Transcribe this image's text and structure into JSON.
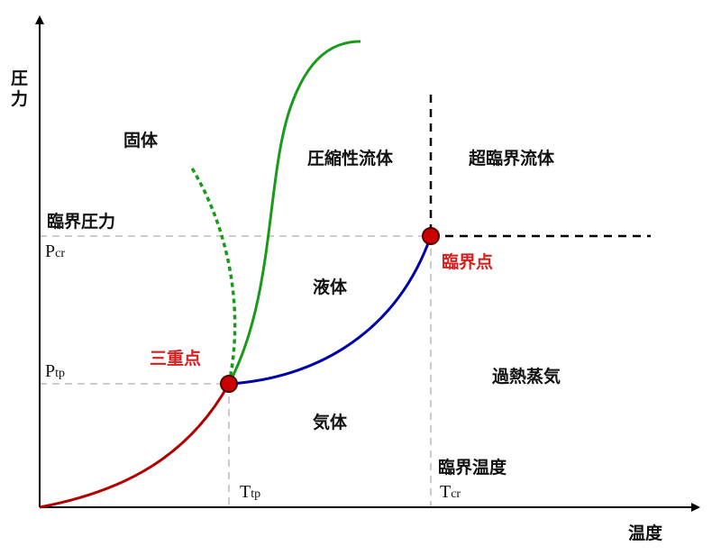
{
  "axes": {
    "y_label": [
      "圧",
      "力"
    ],
    "x_label": "温度"
  },
  "regions": {
    "solid": "固体",
    "compressible_fluid": "圧縮性流体",
    "supercritical_fluid": "超臨界流体",
    "liquid": "液体",
    "gas": "気体",
    "superheated_vapor": "過熱蒸気"
  },
  "points": {
    "triple": "三重点",
    "critical": "臨界点"
  },
  "labels": {
    "critical_pressure": "臨界圧力",
    "critical_temperature": "臨界温度",
    "p_cr": {
      "symbol": "P",
      "subscript": "cr"
    },
    "p_tp": {
      "symbol": "P",
      "subscript": "tp"
    },
    "t_tp": {
      "symbol": "T",
      "subscript": "tp"
    },
    "t_cr": {
      "symbol": "T",
      "subscript": "cr"
    }
  }
}
